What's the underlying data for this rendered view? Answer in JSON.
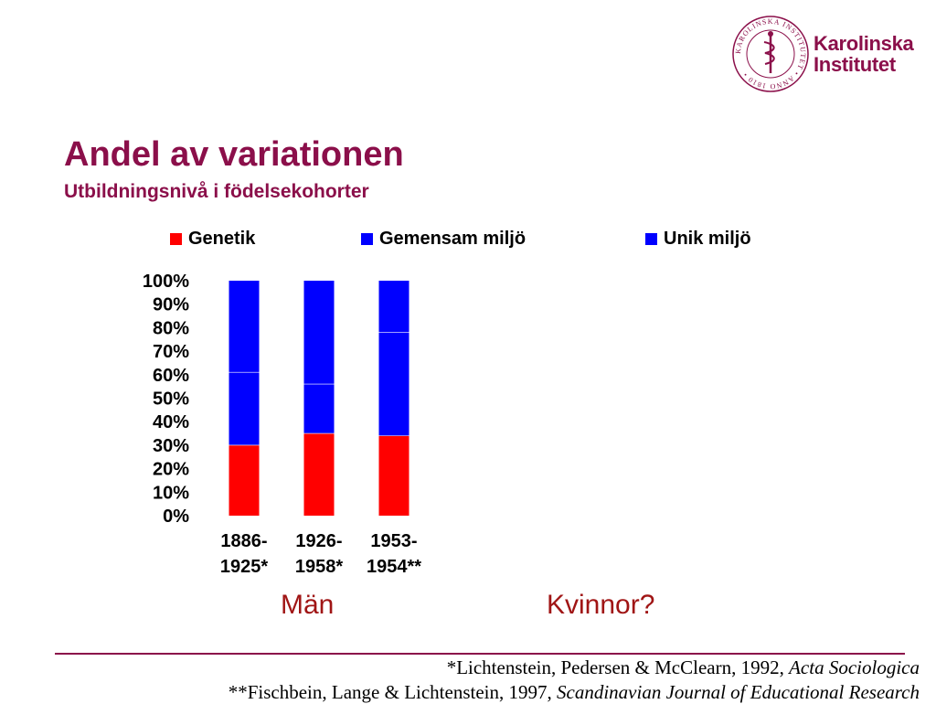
{
  "logo": {
    "name_line1": "Karolinska",
    "name_line2": "Institutet",
    "seal_text": "KAROLINSKA INSTITUTET • ANNO 1810 •"
  },
  "header": {
    "title": "Andel av variationen",
    "subtitle": "Utbildningsnivå i födelsekohorter"
  },
  "colors": {
    "brand": "#8b0f4a",
    "genetik": "#ff0000",
    "gemensam": "#0000ff",
    "unik": "#0000ff",
    "gender_label": "#a01515"
  },
  "chart_data": {
    "type": "bar",
    "stacked": true,
    "categories": [
      "1886-1925*",
      "1926-1958*",
      "1953-1954**"
    ],
    "category_lines": [
      [
        "1886-",
        "1925*"
      ],
      [
        "1926-",
        "1958*"
      ],
      [
        "1953-",
        "1954**"
      ]
    ],
    "series": [
      {
        "name": "Genetik",
        "values": [
          30,
          35,
          34
        ]
      },
      {
        "name": "Gemensam miljö",
        "values": [
          31,
          21,
          44
        ]
      },
      {
        "name": "Unik miljö",
        "values": [
          39,
          44,
          22
        ]
      }
    ],
    "ylim": [
      0,
      100
    ],
    "yticks": [
      "0%",
      "10%",
      "20%",
      "30%",
      "40%",
      "50%",
      "60%",
      "70%",
      "80%",
      "90%",
      "100%"
    ],
    "legend_position": "top",
    "grid": false
  },
  "labels": {
    "men": "Män",
    "women": "Kvinnor?"
  },
  "references": {
    "ref1_text": "*Lichtenstein, Pedersen & McClearn, 1992, ",
    "ref1_journal": "Acta Sociologica",
    "ref2_text": "**Fischbein, Lange & Lichtenstein, 1997, ",
    "ref2_journal": "Scandinavian Journal of Educational Research"
  }
}
